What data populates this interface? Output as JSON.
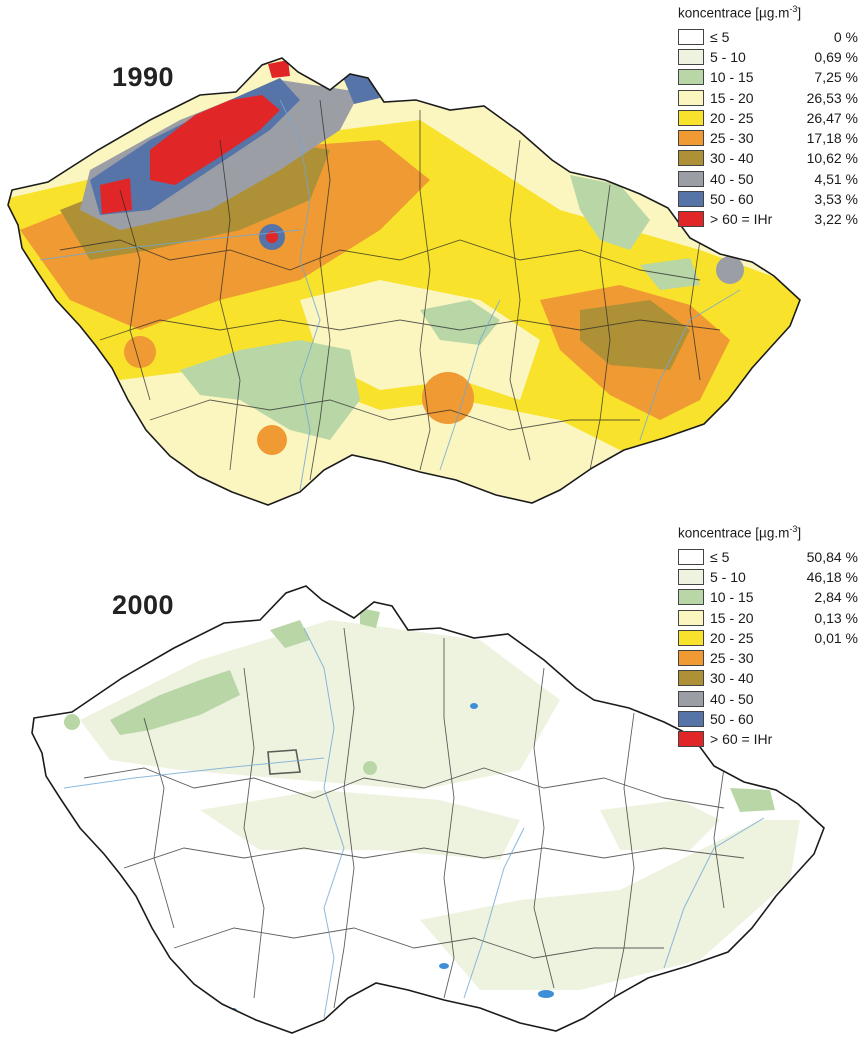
{
  "legend_title": "koncentrace [µg.m",
  "legend_title_exp": "-3",
  "legend_title_close": "]",
  "classes": [
    {
      "range": "≤  5",
      "color": "#ffffff"
    },
    {
      "range": "5 - 10",
      "color": "#eef3e0"
    },
    {
      "range": "10 - 15",
      "color": "#b9d6a6"
    },
    {
      "range": "15 - 20",
      "color": "#fbf6c0"
    },
    {
      "range": "20 - 25",
      "color": "#f8e22b"
    },
    {
      "range": "25 - 30",
      "color": "#ef9a32"
    },
    {
      "range": "30 - 40",
      "color": "#ae9136"
    },
    {
      "range": "40 - 50",
      "color": "#9c9ea6"
    },
    {
      "range": "50 - 60",
      "color": "#5774a8"
    },
    {
      "range": "> 60 = IHr",
      "color": "#e02626"
    }
  ],
  "maps": [
    {
      "year": "1990",
      "shares": [
        "0 %",
        "0,69 %",
        "7,25 %",
        "26,53 %",
        "26,47 %",
        "17,18 %",
        "10,62 %",
        "4,51 %",
        "3,53 %",
        "3,22 %"
      ]
    },
    {
      "year": "2000",
      "shares": [
        "50,84 %",
        "46,18 %",
        "2,84 %",
        "0,13 %",
        "0,01 %",
        "",
        "",
        "",
        "",
        ""
      ]
    }
  ]
}
